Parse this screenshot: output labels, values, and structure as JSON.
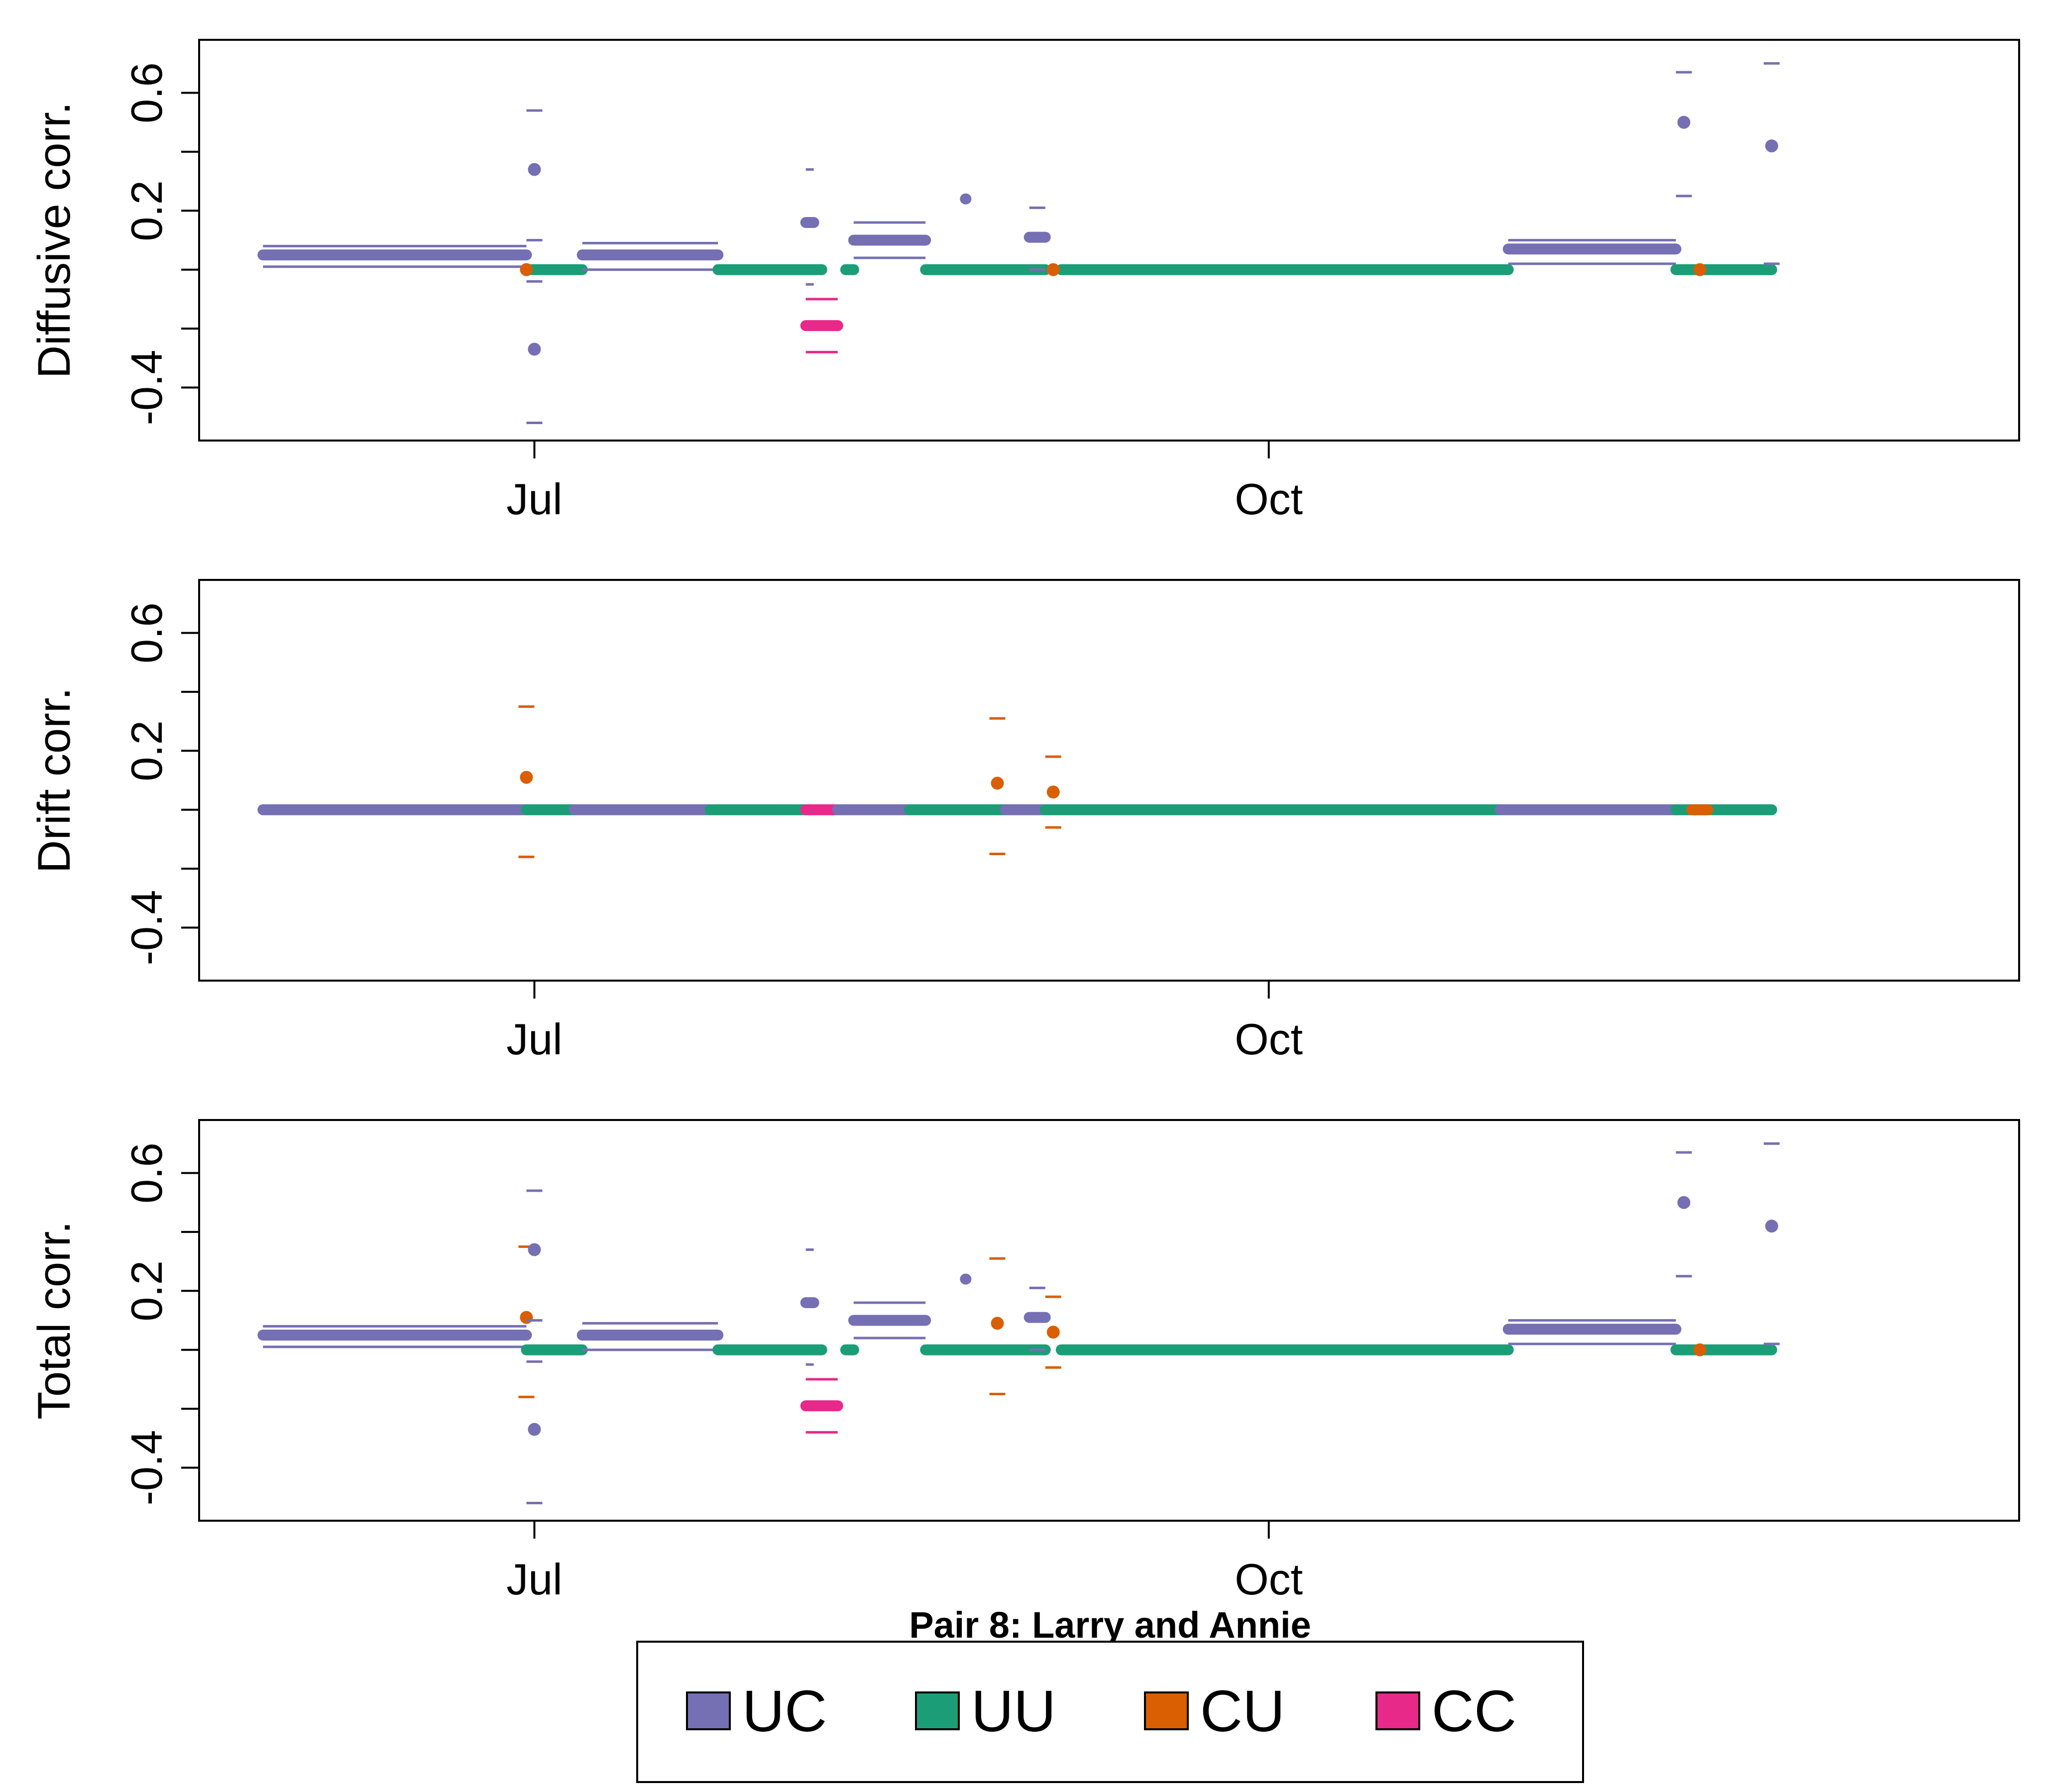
{
  "figure": {
    "caption": "Pair 8: Larry and Annie",
    "colors": {
      "UC": "#7570B3",
      "UU": "#1B9E77",
      "CU": "#D95F02",
      "CC": "#E7298A"
    },
    "legend": {
      "placement": "bottom-center",
      "items": [
        {
          "label": "UC",
          "color": "#7570B3"
        },
        {
          "label": "UU",
          "color": "#1B9E77"
        },
        {
          "label": "CU",
          "color": "#D95F02"
        },
        {
          "label": "CC",
          "color": "#E7298A"
        }
      ]
    }
  },
  "chart_data": [
    {
      "type": "scatter",
      "title": "",
      "ylabel": "Diffusive corr.",
      "xlabel": "",
      "ylim": [
        -0.58,
        0.78
      ],
      "xlim": [
        "2020-05-20",
        "2021-01-03"
      ],
      "yticks": [
        "-0.4",
        "0.2",
        "0.6"
      ],
      "yticks_at": [
        -0.4,
        -0.2,
        0.0,
        0.2,
        0.4,
        0.6
      ],
      "xticks": [
        {
          "label": "Jul",
          "date": "2020-07-01"
        },
        {
          "label": "Oct",
          "date": "2020-10-01"
        }
      ],
      "grid": false,
      "segments": [
        {
          "cat": "UC",
          "x0": "2020-05-28",
          "x1": "2020-06-30",
          "y": 0.05,
          "lo": 0.01,
          "hi": 0.08
        },
        {
          "cat": "UU",
          "x0": "2020-06-30",
          "x1": "2020-07-07",
          "y": 0.0
        },
        {
          "cat": "UC",
          "x0": "2020-07-07",
          "x1": "2020-07-24",
          "y": 0.05,
          "lo": 0.0,
          "hi": 0.09
        },
        {
          "cat": "UU",
          "x0": "2020-07-24",
          "x1": "2020-08-06",
          "y": 0.0
        },
        {
          "cat": "UU",
          "x0": "2020-08-09",
          "x1": "2020-08-10",
          "y": 0.0
        },
        {
          "cat": "UC",
          "x0": "2020-08-10",
          "x1": "2020-08-19",
          "y": 0.1,
          "lo": 0.04,
          "hi": 0.16
        },
        {
          "cat": "UU",
          "x0": "2020-08-19",
          "x1": "2020-09-03",
          "y": 0.0
        },
        {
          "cat": "UU",
          "x0": "2020-09-05",
          "x1": "2020-10-31",
          "y": 0.0
        },
        {
          "cat": "UC",
          "x0": "2020-10-31",
          "x1": "2020-11-21",
          "y": 0.07,
          "lo": 0.02,
          "hi": 0.1
        },
        {
          "cat": "UU",
          "x0": "2020-11-21",
          "x1": "2020-12-03",
          "y": 0.0
        },
        {
          "cat": "UC",
          "x0": "2020-08-24",
          "x1": "2020-08-24",
          "y": 0.24,
          "lo": -0.07,
          "hi": 0.5
        },
        {
          "cat": "UC",
          "x0": "2020-09-01",
          "x1": "2020-09-03",
          "y": 0.11,
          "lo": 0.0,
          "hi": 0.21
        },
        {
          "cat": "CC",
          "x0": "2020-08-04",
          "x1": "2020-08-08",
          "y": -0.19,
          "lo": -0.28,
          "hi": -0.1
        },
        {
          "cat": "UC",
          "x0": "2020-08-04",
          "x1": "2020-08-05",
          "y": 0.16,
          "lo": -0.05,
          "hi": 0.34
        }
      ],
      "points": [
        {
          "cat": "CU",
          "x": "2020-06-30",
          "y": 0.0
        },
        {
          "cat": "UC",
          "x": "2020-07-01",
          "y": 0.34,
          "lo": 0.1,
          "hi": 0.54
        },
        {
          "cat": "UC",
          "x": "2020-07-01",
          "y": -0.27,
          "lo": -0.52,
          "hi": -0.04
        },
        {
          "cat": "CU",
          "x": "2020-09-04",
          "y": 0.0
        },
        {
          "cat": "UC",
          "x": "2020-11-22",
          "y": 0.5,
          "lo": 0.25,
          "hi": 0.67
        },
        {
          "cat": "CU",
          "x": "2020-11-24",
          "y": 0.0
        },
        {
          "cat": "UC",
          "x": "2020-12-03",
          "y": 0.42,
          "lo": 0.02,
          "hi": 0.7
        }
      ]
    },
    {
      "type": "scatter",
      "title": "",
      "ylabel": "Drift corr.",
      "xlabel": "",
      "ylim": [
        -0.58,
        0.78
      ],
      "xlim": [
        "2020-05-20",
        "2021-01-03"
      ],
      "yticks": [
        "-0.4",
        "0.2",
        "0.6"
      ],
      "yticks_at": [
        -0.4,
        -0.2,
        0.0,
        0.2,
        0.4,
        0.6
      ],
      "xticks": [
        {
          "label": "Jul",
          "date": "2020-07-01"
        },
        {
          "label": "Oct",
          "date": "2020-10-01"
        }
      ],
      "grid": false,
      "segments": [
        {
          "cat": "UC",
          "x0": "2020-05-28",
          "x1": "2020-06-30",
          "y": 0.0
        },
        {
          "cat": "UU",
          "x0": "2020-06-30",
          "x1": "2020-07-06",
          "y": 0.0
        },
        {
          "cat": "UC",
          "x0": "2020-07-06",
          "x1": "2020-07-23",
          "y": 0.0
        },
        {
          "cat": "UU",
          "x0": "2020-07-23",
          "x1": "2020-08-04",
          "y": 0.0
        },
        {
          "cat": "CC",
          "x0": "2020-08-04",
          "x1": "2020-08-08",
          "y": 0.0
        },
        {
          "cat": "UC",
          "x0": "2020-08-08",
          "x1": "2020-08-17",
          "y": 0.0
        },
        {
          "cat": "UU",
          "x0": "2020-08-17",
          "x1": "2020-08-29",
          "y": 0.0
        },
        {
          "cat": "UC",
          "x0": "2020-08-29",
          "x1": "2020-09-03",
          "y": 0.0
        },
        {
          "cat": "UU",
          "x0": "2020-09-03",
          "x1": "2020-10-30",
          "y": 0.0
        },
        {
          "cat": "UC",
          "x0": "2020-10-30",
          "x1": "2020-11-21",
          "y": 0.0
        },
        {
          "cat": "UU",
          "x0": "2020-11-21",
          "x1": "2020-12-03",
          "y": 0.0
        },
        {
          "cat": "CU",
          "x0": "2020-11-23",
          "x1": "2020-11-25",
          "y": 0.0
        }
      ],
      "points": [
        {
          "cat": "CU",
          "x": "2020-06-30",
          "y": 0.11,
          "lo": -0.16,
          "hi": 0.35
        },
        {
          "cat": "CU",
          "x": "2020-08-28",
          "y": 0.09,
          "lo": -0.15,
          "hi": 0.31
        },
        {
          "cat": "CU",
          "x": "2020-09-04",
          "y": 0.06,
          "lo": -0.06,
          "hi": 0.18
        }
      ]
    },
    {
      "type": "scatter",
      "title": "",
      "ylabel": "Total corr.",
      "xlabel": "",
      "ylim": [
        -0.58,
        0.78
      ],
      "xlim": [
        "2020-05-20",
        "2021-01-03"
      ],
      "yticks": [
        "-0.4",
        "0.2",
        "0.6"
      ],
      "yticks_at": [
        -0.4,
        -0.2,
        0.0,
        0.2,
        0.4,
        0.6
      ],
      "xticks": [
        {
          "label": "Jul",
          "date": "2020-07-01"
        },
        {
          "label": "Oct",
          "date": "2020-10-01"
        }
      ],
      "grid": false,
      "segments": [
        {
          "cat": "UC",
          "x0": "2020-05-28",
          "x1": "2020-06-30",
          "y": 0.05,
          "lo": 0.01,
          "hi": 0.08
        },
        {
          "cat": "UU",
          "x0": "2020-06-30",
          "x1": "2020-07-07",
          "y": 0.0
        },
        {
          "cat": "UC",
          "x0": "2020-07-07",
          "x1": "2020-07-24",
          "y": 0.05,
          "lo": 0.0,
          "hi": 0.09
        },
        {
          "cat": "UU",
          "x0": "2020-07-24",
          "x1": "2020-08-06",
          "y": 0.0
        },
        {
          "cat": "UU",
          "x0": "2020-08-09",
          "x1": "2020-08-10",
          "y": 0.0
        },
        {
          "cat": "UC",
          "x0": "2020-08-10",
          "x1": "2020-08-19",
          "y": 0.1,
          "lo": 0.04,
          "hi": 0.16
        },
        {
          "cat": "UU",
          "x0": "2020-08-19",
          "x1": "2020-09-03",
          "y": 0.0
        },
        {
          "cat": "UU",
          "x0": "2020-09-05",
          "x1": "2020-10-31",
          "y": 0.0
        },
        {
          "cat": "UC",
          "x0": "2020-10-31",
          "x1": "2020-11-21",
          "y": 0.07,
          "lo": 0.02,
          "hi": 0.1
        },
        {
          "cat": "UU",
          "x0": "2020-11-21",
          "x1": "2020-12-03",
          "y": 0.0
        },
        {
          "cat": "UC",
          "x0": "2020-08-24",
          "x1": "2020-08-24",
          "y": 0.24,
          "lo": -0.07,
          "hi": 0.5
        },
        {
          "cat": "UC",
          "x0": "2020-09-01",
          "x1": "2020-09-03",
          "y": 0.11,
          "lo": 0.0,
          "hi": 0.21
        },
        {
          "cat": "CC",
          "x0": "2020-08-04",
          "x1": "2020-08-08",
          "y": -0.19,
          "lo": -0.28,
          "hi": -0.1
        },
        {
          "cat": "UC",
          "x0": "2020-08-04",
          "x1": "2020-08-05",
          "y": 0.16,
          "lo": -0.05,
          "hi": 0.34
        }
      ],
      "points": [
        {
          "cat": "CU",
          "x": "2020-06-30",
          "y": 0.11,
          "lo": -0.16,
          "hi": 0.35
        },
        {
          "cat": "UC",
          "x": "2020-07-01",
          "y": 0.34,
          "lo": 0.1,
          "hi": 0.54
        },
        {
          "cat": "UC",
          "x": "2020-07-01",
          "y": -0.27,
          "lo": -0.52,
          "hi": -0.04
        },
        {
          "cat": "CU",
          "x": "2020-08-28",
          "y": 0.09,
          "lo": -0.15,
          "hi": 0.31
        },
        {
          "cat": "CU",
          "x": "2020-09-04",
          "y": 0.06,
          "lo": -0.06,
          "hi": 0.18
        },
        {
          "cat": "UC",
          "x": "2020-11-22",
          "y": 0.5,
          "lo": 0.25,
          "hi": 0.67
        },
        {
          "cat": "CU",
          "x": "2020-11-24",
          "y": 0.0
        },
        {
          "cat": "UC",
          "x": "2020-12-03",
          "y": 0.42,
          "lo": 0.02,
          "hi": 0.7
        }
      ]
    }
  ]
}
